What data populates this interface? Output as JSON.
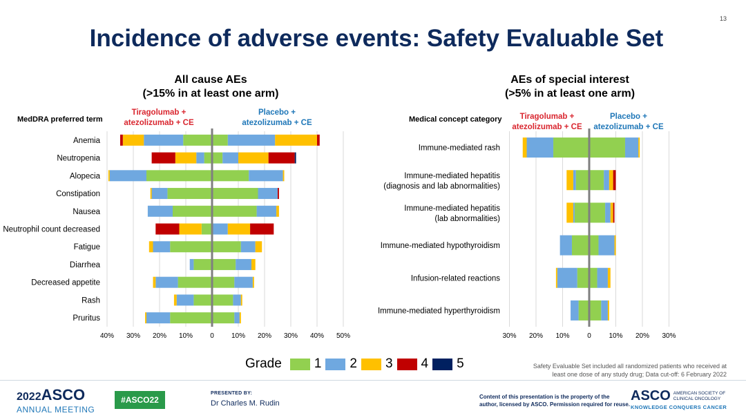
{
  "slide_number": "13",
  "title": "Incidence of adverse events: Safety Evaluable Set",
  "left_title_line1": "All cause AEs",
  "left_title_line2": "(>15% in at least one arm)",
  "right_title_line1": "AEs of special interest",
  "right_title_line2": "(>5% in at least one arm)",
  "left_header": "MedDRA preferred term",
  "right_header": "Medical concept category",
  "arm_tira_l1": "Tiragolumab +",
  "arm_tira_l2": "atezolizumab + CE",
  "arm_pbo_l1": "Placebo +",
  "arm_pbo_l2": "atezolizumab + CE",
  "colors": {
    "g1": "#92d050",
    "g2": "#6fa8e0",
    "g3": "#ffc000",
    "g4": "#c00000",
    "g5": "#002060",
    "axis": "#7f7f7f",
    "grid": "#d9d9d9"
  },
  "legend": {
    "label": "Grade",
    "items": [
      "1",
      "2",
      "3",
      "4",
      "5"
    ]
  },
  "footnote": "Safety Evaluable Set included all randomized patients who received at least one dose of any study drug; Data cut-off: 6 February 2022",
  "footer": {
    "year": "2022",
    "asco": "ASCO",
    "annual_meeting": "ANNUAL MEETING",
    "hashtag": "#ASCO22",
    "presented_by": "PRESENTED BY:",
    "presenter": "Dr Charles M. Rudin",
    "copyright_l1": "Content of this presentation is the property of the",
    "copyright_l2": "author, licensed by ASCO. Permission required for reuse.",
    "society_l1": "AMERICAN SOCIETY OF",
    "society_l2": "CLINICAL ONCOLOGY",
    "tagline": "KNOWLEDGE CONQUERS CANCER"
  },
  "chart_data": [
    {
      "type": "bar",
      "title": "All cause AEs (>15% in at least one arm)",
      "orientation": "horizontal diverging stacked",
      "x_ticks": [
        "40%",
        "30%",
        "20%",
        "10%",
        "0",
        "10%",
        "20%",
        "30%",
        "40%",
        "50%"
      ],
      "xlim": [
        -40,
        50
      ],
      "grid": true,
      "categories": [
        "Anemia",
        "Neutropenia",
        "Alopecia",
        "Constipation",
        "Nausea",
        "Neutrophil count decreased",
        "Fatigue",
        "Diarrhea",
        "Decreased appetite",
        "Rash",
        "Pruritus"
      ],
      "series": [
        {
          "name": "Tiragolumab + atezolizumab + CE",
          "grades": [
            [
              11,
              15,
              8,
              1,
              0
            ],
            [
              3,
              3,
              8,
              9,
              0
            ],
            [
              25,
              14,
              0.5,
              0,
              0
            ],
            [
              17,
              6,
              0.5,
              0,
              0
            ],
            [
              15,
              9.5,
              0,
              0,
              0
            ],
            [
              4,
              0,
              8.5,
              9,
              0
            ],
            [
              16,
              6.5,
              1.5,
              0,
              0
            ],
            [
              7,
              1.5,
              0,
              0,
              0
            ],
            [
              13,
              8.5,
              1,
              0,
              0
            ],
            [
              7,
              6.5,
              1,
              0,
              0
            ],
            [
              16,
              9,
              0.5,
              0,
              0
            ]
          ]
        },
        {
          "name": "Placebo + atezolizumab + CE",
          "grades": [
            [
              6,
              18,
              16,
              1,
              0
            ],
            [
              4,
              6,
              11.5,
              10,
              0.5
            ],
            [
              14,
              13,
              0.5,
              0,
              0
            ],
            [
              17.5,
              7.5,
              0,
              0.5,
              0
            ],
            [
              17,
              7.5,
              1,
              0,
              0
            ],
            [
              0,
              6,
              8.5,
              9,
              0
            ],
            [
              11,
              5.5,
              2.5,
              0,
              0
            ],
            [
              9,
              6,
              1.5,
              0,
              0
            ],
            [
              8.5,
              7,
              0.5,
              0,
              0
            ],
            [
              8,
              3,
              0.5,
              0,
              0
            ],
            [
              8.5,
              2,
              0.5,
              0,
              0
            ]
          ]
        }
      ]
    },
    {
      "type": "bar",
      "title": "AEs of special interest (>5% in at least one arm)",
      "orientation": "horizontal diverging stacked",
      "x_ticks": [
        "30%",
        "20%",
        "10%",
        "0",
        "10%",
        "20%",
        "30%"
      ],
      "xlim": [
        -30,
        30
      ],
      "grid": true,
      "categories": [
        "Immune-mediated rash",
        "Immune-mediated hepatitis (diagnosis and lab abnormalities)",
        "Immune-mediated hepatitis (lab abnormalities)",
        "Immune-mediated hypothyroidism",
        "Infusion-related reactions",
        "Immune-mediated hyperthyroidism"
      ],
      "series": [
        {
          "name": "Tiragolumab + atezolizumab + CE",
          "grades": [
            [
              13.5,
              10,
              1.5,
              0,
              0
            ],
            [
              5,
              1,
              2.5,
              0,
              0
            ],
            [
              5.5,
              0.5,
              2.5,
              0,
              0
            ],
            [
              6.5,
              4.5,
              0,
              0,
              0
            ],
            [
              4.5,
              7.5,
              0.5,
              0,
              0
            ],
            [
              4,
              3,
              0,
              0,
              0
            ]
          ]
        },
        {
          "name": "Placebo + atezolizumab + CE",
          "grades": [
            [
              13.5,
              5,
              0.5,
              0,
              0
            ],
            [
              5.5,
              2,
              1.5,
              1,
              0
            ],
            [
              6,
              2,
              1,
              0.5,
              0
            ],
            [
              3.5,
              6,
              0.5,
              0,
              0
            ],
            [
              3,
              4,
              1,
              0,
              0
            ],
            [
              4.5,
              2.5,
              0.5,
              0,
              0
            ]
          ]
        }
      ]
    }
  ]
}
